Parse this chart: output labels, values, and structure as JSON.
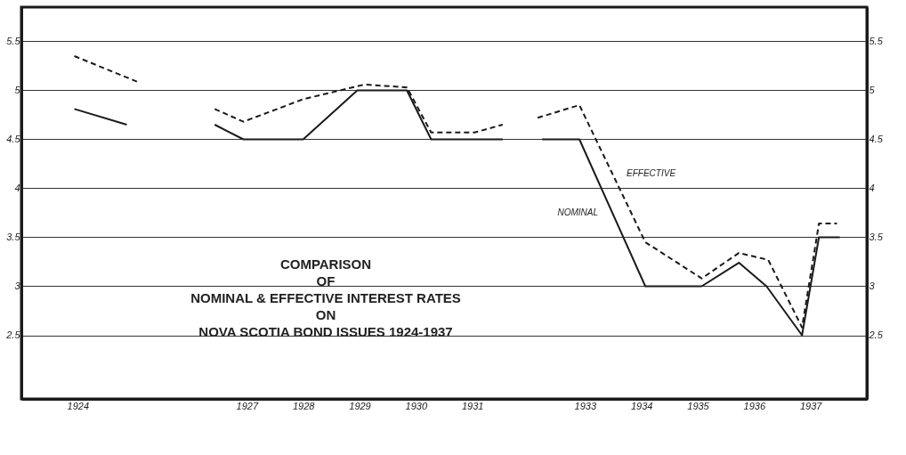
{
  "chart_data": {
    "type": "line",
    "title": "COMPARISON\nOF\nNOMINAL & EFFECTIVE INTEREST RATES\nON\nNOVA SCOTIA BOND ISSUES 1924-1937",
    "xlim": [
      1923.0,
      1938.0
    ],
    "xticks": [
      1924,
      1927,
      1928,
      1929,
      1930,
      1931,
      1933,
      1934,
      1935,
      1936,
      1937
    ],
    "ylim": [
      1.85,
      5.85
    ],
    "yticks": [
      2.5,
      3,
      3.5,
      4,
      4.5,
      5,
      5.5
    ],
    "y2lim": [
      1.85,
      5.85
    ],
    "y2ticks": [
      2.5,
      3,
      3.5,
      4,
      4.5,
      5,
      5.5
    ],
    "grid": "y",
    "series": [
      {
        "name": "NOMINAL",
        "color": "#1a1a1a",
        "line_style": "solid",
        "x": [
          1923.94,
          1924.87,
          null,
          1926.43,
          1926.94,
          1928.0,
          1928.96,
          1929.84,
          1930.27,
          1931.54,
          null,
          1932.24,
          1932.9,
          1934.07,
          1935.07,
          1935.73,
          1936.22,
          1936.85,
          1937.15,
          1937.52
        ],
        "values": [
          4.81,
          4.65,
          null,
          4.65,
          4.5,
          4.5,
          5.0,
          5.0,
          4.5,
          4.5,
          null,
          4.5,
          4.5,
          3.0,
          3.0,
          3.24,
          3.0,
          2.5,
          3.5,
          3.5
        ]
      },
      {
        "name": "EFFECTIVE",
        "color": "#1a1a1a",
        "line_style": "dashed",
        "x": [
          1923.94,
          1925.05,
          null,
          1926.43,
          1926.94,
          1928.0,
          1929.09,
          1929.84,
          1930.27,
          1931.04,
          1931.54,
          null,
          1932.16,
          1932.9,
          1934.07,
          1935.07,
          1935.73,
          1936.25,
          1936.85,
          1937.15,
          1937.47
        ],
        "values": [
          5.35,
          5.09,
          null,
          4.81,
          4.68,
          4.91,
          5.06,
          5.03,
          4.57,
          4.57,
          4.65,
          null,
          4.72,
          4.85,
          3.45,
          3.08,
          3.34,
          3.27,
          2.58,
          3.64,
          3.64
        ]
      }
    ]
  }
}
